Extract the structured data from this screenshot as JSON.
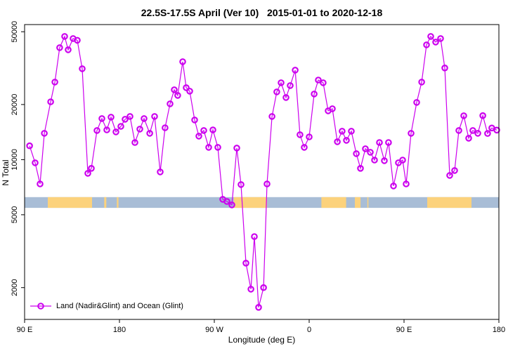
{
  "title": "22.5S-17.5S April (Ver 10)   2015-01-01 to 2020-12-18",
  "x_axis": {
    "label": "Longitude (deg E)",
    "ticks": [
      {
        "pos": 90,
        "label": "90 E"
      },
      {
        "pos": 180,
        "label": "180"
      },
      {
        "pos": 270,
        "label": "90 W"
      },
      {
        "pos": 360,
        "label": "0"
      },
      {
        "pos": 450,
        "label": "90 E"
      },
      {
        "pos": 540,
        "label": "180"
      }
    ]
  },
  "y_axis": {
    "label": "N Total",
    "ticks": [
      {
        "value": 2000,
        "label": "2000"
      },
      {
        "value": 5000,
        "label": "5000"
      },
      {
        "value": 10000,
        "label": "10000"
      },
      {
        "value": 20000,
        "label": "20000"
      },
      {
        "value": 50000,
        "label": "50000"
      }
    ]
  },
  "legend": {
    "label": "Land (Nadir&Glint) and Ocean (Glint)"
  },
  "colors": {
    "marker": "#cc00ee",
    "ocean": "#a8bdd6",
    "land": "#fcd27c",
    "axis": "#000000"
  },
  "chart_data": {
    "type": "scatter",
    "title": "22.5S-17.5S April (Ver 10)   2015-01-01 to 2020-12-18",
    "xlabel": "Longitude (deg E)",
    "ylabel": "N Total",
    "y_scale": "log",
    "x_range": [
      90,
      540
    ],
    "y_range": [
      1340,
      54700
    ],
    "x_tick_positions": [
      90,
      180,
      270,
      360,
      450,
      540
    ],
    "x_tick_labels": [
      "90 E",
      "180",
      "90 W",
      "0",
      "90 E",
      "180"
    ],
    "y_ticks": [
      2000,
      5000,
      10000,
      20000,
      50000
    ],
    "series_name": "Land (Nadir&Glint) and Ocean (Glint)",
    "band": {
      "description": "land-ocean strip",
      "y_bottom": 5450,
      "y_top": 6240,
      "land_segments": [
        [
          112,
          154
        ],
        [
          165.5,
          167.5
        ],
        [
          177.5,
          179
        ],
        [
          288.5,
          320
        ],
        [
          371.6,
          395.1
        ],
        [
          403.3,
          408.7
        ],
        [
          415.2,
          416.2
        ],
        [
          472,
          514
        ]
      ]
    },
    "points": [
      [
        94.7,
        11900
      ],
      [
        100,
        9610
      ],
      [
        104.7,
        7370
      ],
      [
        108.7,
        13930
      ],
      [
        114.7,
        20700
      ],
      [
        118.7,
        26540
      ],
      [
        123.3,
        40900
      ],
      [
        128,
        47100
      ],
      [
        131.3,
        39850
      ],
      [
        136,
        45900
      ],
      [
        140,
        44900
      ],
      [
        144.7,
        31400
      ],
      [
        150,
        8420
      ],
      [
        153.3,
        8960
      ],
      [
        158.7,
        14430
      ],
      [
        163.3,
        16760
      ],
      [
        168,
        14550
      ],
      [
        172,
        17060
      ],
      [
        176.7,
        14180
      ],
      [
        181.3,
        15200
      ],
      [
        185.3,
        16620
      ],
      [
        190,
        17210
      ],
      [
        194.7,
        12410
      ],
      [
        199.3,
        14680
      ],
      [
        203.3,
        16760
      ],
      [
        208.7,
        13930
      ],
      [
        213.3,
        17210
      ],
      [
        218.7,
        8570
      ],
      [
        223.3,
        14940
      ],
      [
        228,
        20180
      ],
      [
        232,
        24080
      ],
      [
        235.3,
        22430
      ],
      [
        240,
        34280
      ],
      [
        243.3,
        24730
      ],
      [
        246.7,
        23660
      ],
      [
        251.3,
        16470
      ],
      [
        255.3,
        13440
      ],
      [
        260,
        14430
      ],
      [
        264.7,
        11670
      ],
      [
        268.7,
        14550
      ],
      [
        273.3,
        11670
      ],
      [
        278,
        6070
      ],
      [
        282,
        5910
      ],
      [
        286.7,
        5660
      ],
      [
        291.3,
        11570
      ],
      [
        295.3,
        7310
      ],
      [
        300,
        2720
      ],
      [
        304.7,
        1960
      ],
      [
        308,
        3800
      ],
      [
        312,
        1560
      ],
      [
        316.7,
        2000
      ],
      [
        320,
        7370
      ],
      [
        324.7,
        17210
      ],
      [
        329.3,
        23450
      ],
      [
        333.3,
        26300
      ],
      [
        338,
        21850
      ],
      [
        342,
        25390
      ],
      [
        346.7,
        30830
      ],
      [
        351.3,
        13680
      ],
      [
        355.3,
        11670
      ],
      [
        360,
        13320
      ],
      [
        364.7,
        22840
      ],
      [
        368.7,
        27230
      ],
      [
        373.3,
        26300
      ],
      [
        378,
        18480
      ],
      [
        382,
        18970
      ],
      [
        386.7,
        12530
      ],
      [
        391.3,
        14300
      ],
      [
        395.3,
        12750
      ],
      [
        400,
        14300
      ],
      [
        404.7,
        10780
      ],
      [
        408.7,
        8960
      ],
      [
        413.3,
        11470
      ],
      [
        418,
        10970
      ],
      [
        422,
        9950
      ],
      [
        426.7,
        12410
      ],
      [
        431.3,
        9870
      ],
      [
        435.3,
        12410
      ],
      [
        440,
        7180
      ],
      [
        444.7,
        9610
      ],
      [
        448.7,
        9950
      ],
      [
        452,
        7370
      ],
      [
        456.7,
        13930
      ],
      [
        462,
        20540
      ],
      [
        466.7,
        26540
      ],
      [
        471.3,
        42360
      ],
      [
        475.3,
        47100
      ],
      [
        480,
        43900
      ],
      [
        484.7,
        45900
      ],
      [
        488.7,
        31700
      ],
      [
        493.3,
        8200
      ],
      [
        498,
        8720
      ],
      [
        502,
        14430
      ],
      [
        506.7,
        17370
      ],
      [
        511.3,
        13090
      ],
      [
        515.3,
        14430
      ],
      [
        520,
        13930
      ],
      [
        524.7,
        17400
      ],
      [
        529.3,
        13900
      ],
      [
        533.3,
        14900
      ],
      [
        538,
        14500
      ]
    ]
  }
}
